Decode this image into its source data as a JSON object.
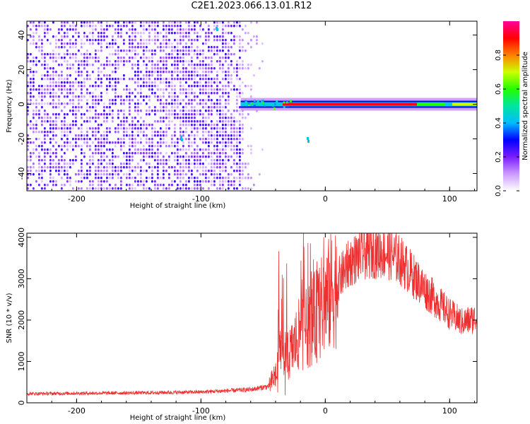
{
  "title": "C2E1.2023.066.13.01.R12",
  "chart_data": [
    {
      "type": "heatmap",
      "xlabel": "Height of straight line (km)",
      "ylabel": "Frequency (Hz)",
      "xlim": [
        -240,
        122
      ],
      "ylim": [
        -50,
        48
      ],
      "xticks": [
        -200,
        -100,
        0,
        100
      ],
      "yticks": [
        -40,
        -20,
        0,
        20,
        40
      ],
      "grid": false,
      "colorbar": {
        "label": "Normalized spectral amplitude",
        "range": [
          0,
          1
        ],
        "ticks": [
          "0.0",
          "0.2",
          "0.4",
          "0.6",
          "0.8"
        ],
        "colors": [
          "#ffffff",
          "#cc99ff",
          "#7a1dff",
          "#0000ff",
          "#00bbff",
          "#00e5a0",
          "#22ff00",
          "#ccff00",
          "#ff8000",
          "#ff0000",
          "#ff0099"
        ]
      },
      "noise_region": {
        "x": [
          -240,
          -68
        ],
        "fade_to": -55
      },
      "carrier_line": {
        "frequency": 0,
        "x": [
          -68,
          122
        ],
        "peak_amplitude": 1.0
      }
    },
    {
      "type": "line",
      "xlabel": "Height of straight line (km)",
      "ylabel": "SNR (10 * v/v)",
      "xlim": [
        -240,
        122
      ],
      "ylim": [
        0,
        4100
      ],
      "xticks": [
        -200,
        -100,
        0,
        100
      ],
      "yticks": [
        0,
        1000,
        2000,
        3000,
        4000
      ],
      "grid": false,
      "color": "#f03030",
      "envelope": {
        "x": [
          -240,
          -200,
          -150,
          -100,
          -60,
          -45,
          -40,
          -35,
          -30,
          -25,
          -20,
          -15,
          -10,
          -5,
          0,
          10,
          20,
          30,
          40,
          50,
          60,
          70,
          80,
          90,
          100,
          110,
          122
        ],
        "y": [
          220,
          230,
          240,
          260,
          320,
          400,
          700,
          1400,
          1100,
          1400,
          1700,
          1800,
          2000,
          2200,
          2450,
          2950,
          3400,
          3600,
          3650,
          3620,
          3450,
          3100,
          2750,
          2450,
          2150,
          1950,
          2050
        ]
      }
    }
  ]
}
